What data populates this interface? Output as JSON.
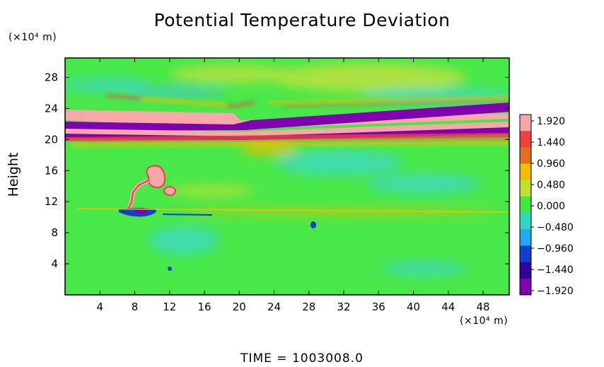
{
  "chart_data": {
    "type": "heatmap",
    "title": "Potential Temperature Deviation",
    "ylabel": "Height",
    "y_unit": "(×10⁴ m)",
    "x_unit": "(×10⁴ m)",
    "x_ticks": [
      4,
      8,
      12,
      16,
      20,
      24,
      28,
      32,
      36,
      40,
      44,
      48
    ],
    "y_ticks": [
      4,
      8,
      12,
      16,
      20,
      24,
      28
    ],
    "xlim": [
      0,
      51
    ],
    "ylim": [
      0,
      30.5
    ],
    "colorbar": {
      "labels": [
        "1.920",
        "1.440",
        "0.960",
        "0.480",
        "0.000",
        "−0.480",
        "−0.960",
        "−1.440",
        "−1.920"
      ],
      "values": [
        1.92,
        1.44,
        0.96,
        0.48,
        0.0,
        -0.48,
        -0.96,
        -1.44,
        -1.92
      ],
      "colors": [
        "#f8a8a8",
        "#f04040",
        "#e07020",
        "#f0c000",
        "#c0e030",
        "#40e840",
        "#30d8c0",
        "#20a8f0",
        "#1040d0",
        "#3000a0",
        "#8000b0"
      ]
    },
    "time_label": "TIME  =  1003008.0",
    "background_color": "#48e848"
  }
}
